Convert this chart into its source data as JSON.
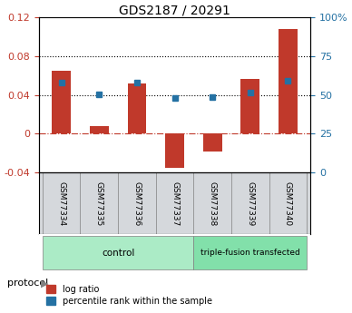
{
  "title": "GDS2187 / 20291",
  "samples": [
    "GSM77334",
    "GSM77335",
    "GSM77336",
    "GSM77337",
    "GSM77338",
    "GSM77339",
    "GSM77340"
  ],
  "log_ratio": [
    0.065,
    0.008,
    0.052,
    -0.035,
    -0.018,
    0.057,
    0.108
  ],
  "percentile_rank": [
    0.053,
    0.041,
    0.053,
    0.037,
    0.038,
    0.043,
    0.055
  ],
  "ylim_left": [
    -0.04,
    0.12
  ],
  "ylim_right": [
    0,
    100
  ],
  "bar_color": "#c0392b",
  "dot_color": "#2471a3",
  "groups": [
    {
      "label": "control",
      "indices": [
        0,
        1,
        2,
        3
      ],
      "color": "#abebc6"
    },
    {
      "label": "triple-fusion transfected",
      "indices": [
        4,
        5,
        6
      ],
      "color": "#82e0aa"
    }
  ],
  "protocol_label": "protocol",
  "legend_items": [
    {
      "label": "log ratio",
      "color": "#c0392b"
    },
    {
      "label": "percentile rank within the sample",
      "color": "#2471a3"
    }
  ]
}
